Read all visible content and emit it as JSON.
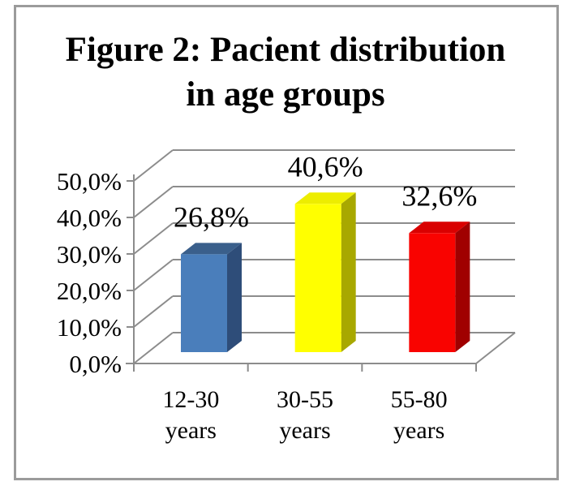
{
  "figure_title": {
    "line1": "Figure 2: Pacient distribution",
    "line2": "in age groups"
  },
  "chart_data": {
    "type": "bar",
    "subtype": "3d-column",
    "title": "Figure 2: Pacient distribution in age groups",
    "categories": [
      "12-30 years",
      "30-55 years",
      "55-80 years"
    ],
    "values": [
      26.8,
      40.6,
      32.6
    ],
    "data_labels": [
      "26,8%",
      "40,6%",
      "32,6%"
    ],
    "y_axis": {
      "tick_labels": [
        "0,0%",
        "10,0%",
        "20,0%",
        "30,0%",
        "40,0%",
        "50,0%"
      ],
      "min": 0,
      "max": 50,
      "step": 10
    },
    "xlabel": "",
    "ylabel": "",
    "legend": "none",
    "grid": true,
    "colors": {
      "axis": "#8c8c8c",
      "bars": [
        {
          "front": "#4a7ebb",
          "top": "#3a5f8b",
          "side": "#2e4d79"
        },
        {
          "front": "#ffff00",
          "top": "#eded00",
          "side": "#a8a800"
        },
        {
          "front": "#f90300",
          "top": "#d90000",
          "side": "#a00000"
        }
      ]
    }
  }
}
